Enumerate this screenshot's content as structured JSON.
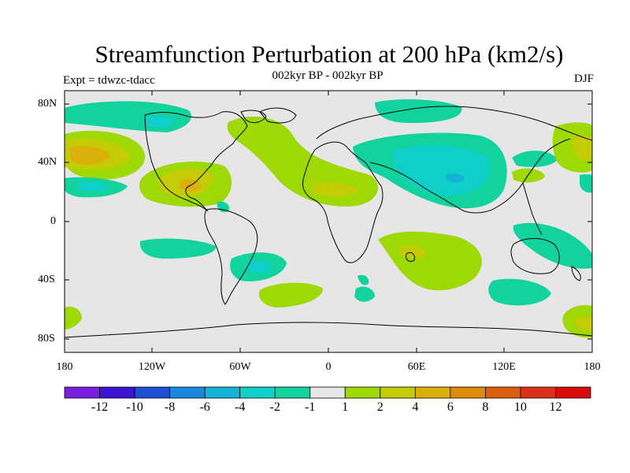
{
  "header": {
    "title": "Streamfunction Perturbation at 200 hPa (km2/s)",
    "subtitle": "002kyr BP - 002kyr BP",
    "expt": "Expt = tdwzc-tdacc",
    "season": "DJF"
  },
  "axes": {
    "lat_labels": [
      "80N",
      "40N",
      "0",
      "40S",
      "80S"
    ],
    "lon_labels": [
      "180",
      "120W",
      "60W",
      "0",
      "60E",
      "120E",
      "180"
    ]
  },
  "colorbar": {
    "labels": [
      "-12",
      "-10",
      "-8",
      "-6",
      "-4",
      "-2",
      "-1",
      "1",
      "2",
      "4",
      "6",
      "8",
      "10",
      "12"
    ],
    "colors": [
      "#7a1ee0",
      "#3c14d6",
      "#1e4fd4",
      "#1a88dc",
      "#16b2d6",
      "#10cfc8",
      "#12d39e",
      "#e6e6e6",
      "#9ed805",
      "#c4cc05",
      "#dcb00a",
      "#dc8c0a",
      "#dc6010",
      "#dc3018",
      "#dc0a0a"
    ]
  },
  "colors": {
    "land_background": "#e6e6e6",
    "coastline": "#000000"
  }
}
